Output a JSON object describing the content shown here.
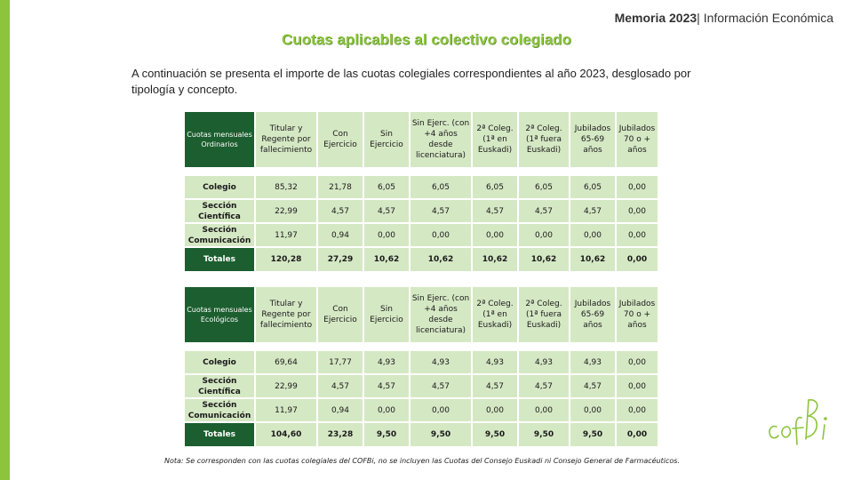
{
  "header": {
    "report": "Memoria 2023",
    "separator": "|",
    "section": " Información  Económica"
  },
  "title": "Cuotas aplicables al colectivo  colegiado",
  "intro": "A continuación se presenta el importe  de las cuotas colegiales correspondientes al año 2023,  desglosado por tipología y concepto.",
  "columns": [
    "Titular y Regente por fallecimiento",
    "Con Ejercicio",
    "Sin Ejercicio",
    "Sin Ejerc. (con +4 años desde licenciatura)",
    "2ª Coleg. (1ª en Euskadi)",
    "2ª Coleg. (1ª fuera Euskadi)",
    "Jubilados 65-69 años",
    "Jubilados 70 o + años"
  ],
  "tables": [
    {
      "corner": "Cuotas mensuales Ordinarios",
      "rows": [
        {
          "label": "Colegio",
          "values": [
            "85,32",
            "21,78",
            "6,05",
            "6,05",
            "6,05",
            "6,05",
            "6,05",
            "0,00"
          ]
        },
        {
          "label": "Sección Científica",
          "values": [
            "22,99",
            "4,57",
            "4,57",
            "4,57",
            "4,57",
            "4,57",
            "4,57",
            "0,00"
          ]
        },
        {
          "label": "Sección Comunicación",
          "values": [
            "11,97",
            "0,94",
            "0,00",
            "0,00",
            "0,00",
            "0,00",
            "0,00",
            "0,00"
          ]
        }
      ],
      "total": {
        "label": "Totales",
        "values": [
          "120,28",
          "27,29",
          "10,62",
          "10,62",
          "10,62",
          "10,62",
          "10,62",
          "0,00"
        ]
      }
    },
    {
      "corner": "Cuotas mensuales Ecológicos",
      "rows": [
        {
          "label": "Colegio",
          "values": [
            "69,64",
            "17,77",
            "4,93",
            "4,93",
            "4,93",
            "4,93",
            "4,93",
            "0,00"
          ]
        },
        {
          "label": "Sección Científica",
          "values": [
            "22,99",
            "4,57",
            "4,57",
            "4,57",
            "4,57",
            "4,57",
            "4,57",
            "0,00"
          ]
        },
        {
          "label": "Sección Comunicación",
          "values": [
            "11,97",
            "0,94",
            "0,00",
            "0,00",
            "0,00",
            "0,00",
            "0,00",
            "0,00"
          ]
        }
      ],
      "total": {
        "label": "Totales",
        "values": [
          "104,60",
          "23,28",
          "9,50",
          "9,50",
          "9,50",
          "9,50",
          "9,50",
          "0,00"
        ]
      }
    }
  ],
  "note": "Nota: Se corresponden con las cuotas colegiales del COFBi, no se incluyen las Cuotas del Consejo Euskadi ni Consejo General de Farmacéuticos.",
  "logo": {
    "text": "cofbi",
    "icon": "cofbi-logo-icon",
    "color": "#8cc43c"
  },
  "colors": {
    "accent": "#8cc43c",
    "dark_green": "#1c5e2f",
    "cell": "#d5e8c4"
  }
}
